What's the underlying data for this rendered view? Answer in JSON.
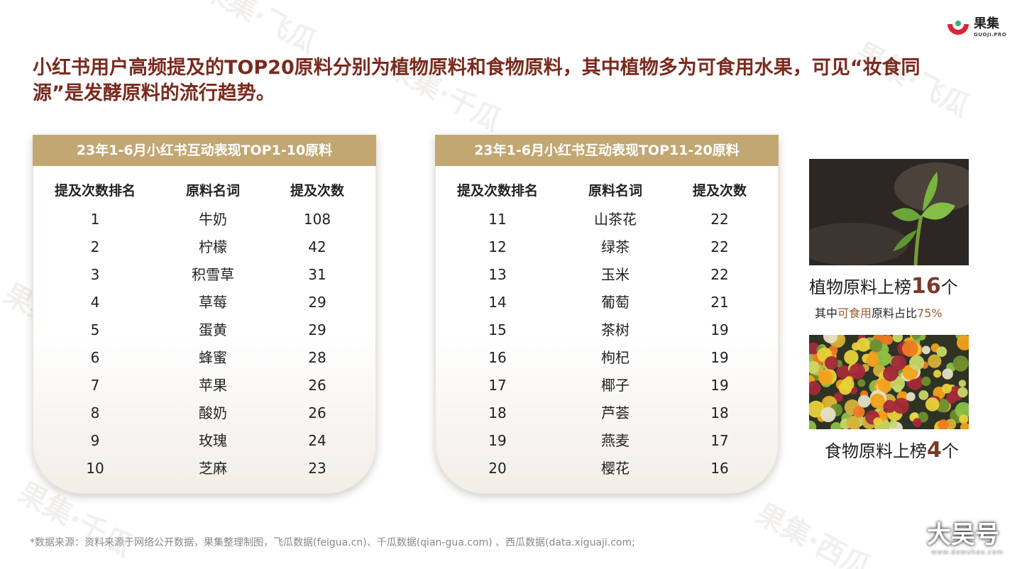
{
  "logo": {
    "name": "果集",
    "sub": "GUOJI.PRO"
  },
  "headline": "小红书用户高频提及的TOP20原料分别为植物原料和食物原料，其中植物多为可食用水果，可见“妆食同源”是发酵原料的流行趋势。",
  "watermarks": [
    "果集·飞瓜",
    "果集·千瓜",
    "果集·西瓜",
    "果集·飞瓜",
    "果集·千瓜",
    "果集·西瓜",
    "果集·飞瓜",
    "果集·千瓜"
  ],
  "table_left": {
    "title": "23年1-6月小红书互动表现TOP1-10原料",
    "headers": [
      "提及次数排名",
      "原料名词",
      "提及次数"
    ],
    "rows": [
      [
        "1",
        "牛奶",
        "108"
      ],
      [
        "2",
        "柠檬",
        "42"
      ],
      [
        "3",
        "积雪草",
        "31"
      ],
      [
        "4",
        "草莓",
        "29"
      ],
      [
        "5",
        "蛋黄",
        "29"
      ],
      [
        "6",
        "蜂蜜",
        "28"
      ],
      [
        "7",
        "苹果",
        "26"
      ],
      [
        "8",
        "酸奶",
        "26"
      ],
      [
        "9",
        "玫瑰",
        "24"
      ],
      [
        "10",
        "芝麻",
        "23"
      ]
    ]
  },
  "table_right": {
    "title": "23年1-6月小红书互动表现TOP11-20原料",
    "headers": [
      "提及次数排名",
      "原料名词",
      "提及次数"
    ],
    "rows": [
      [
        "11",
        "山茶花",
        "22"
      ],
      [
        "12",
        "绿茶",
        "22"
      ],
      [
        "13",
        "玉米",
        "22"
      ],
      [
        "14",
        "葡萄",
        "21"
      ],
      [
        "15",
        "茶树",
        "19"
      ],
      [
        "16",
        "枸杞",
        "19"
      ],
      [
        "17",
        "椰子",
        "19"
      ],
      [
        "18",
        "芦荟",
        "18"
      ],
      [
        "19",
        "燕麦",
        "17"
      ],
      [
        "20",
        "樱花",
        "16"
      ]
    ]
  },
  "stats": {
    "plant_prefix": "植物原料上榜",
    "plant_count": "16",
    "plant_suffix": "个",
    "plant_sub_prefix": "其中",
    "plant_sub_highlight": "可食用",
    "plant_sub_mid": "原料占比",
    "plant_sub_pct": "75%",
    "food_prefix": "食物原料上榜",
    "food_count": "4",
    "food_suffix": "个"
  },
  "footer": "*数据来源：资料来源于网络公开数据，果集整理制图，飞瓜数据(feigua.cn)、千瓜数据(qian-gua.com) 、西瓜数据(data.xiguaji.com;",
  "stamp": {
    "big": "大吴号",
    "small": "www.dawuhao.com"
  },
  "colors": {
    "headline": "#7a2a1e",
    "table_header": "#c3a773",
    "accent": "#7a3a2a",
    "highlight": "#a0572e",
    "logo_red": "#d8263a"
  }
}
